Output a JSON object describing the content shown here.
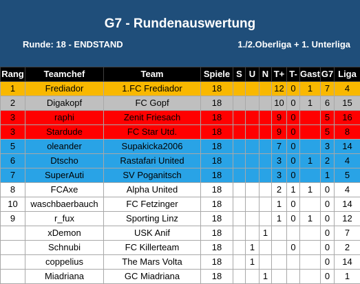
{
  "header": {
    "title": "G7 - Rundenauswertung",
    "round": "Runde: 18 - ENDSTAND",
    "league": "1./2.Oberliga + 1. Unterliga"
  },
  "colors": {
    "header_bg": "#1f4e7a",
    "gold": "#f9b800",
    "silver": "#bfbfbf",
    "red": "#ff0000",
    "blue": "#29a3e6"
  },
  "table": {
    "headers": [
      "Rang",
      "Teamchef",
      "Team",
      "Spiele",
      "S",
      "U",
      "N",
      "T+",
      "T-",
      "Gast",
      "G7",
      "Liga"
    ],
    "rows": [
      {
        "style": "gold",
        "cells": [
          "1",
          "Frediador",
          "1.FC Frediador",
          "18",
          "",
          "",
          "",
          "12",
          "0",
          "1",
          "7",
          "4"
        ]
      },
      {
        "style": "silver",
        "cells": [
          "2",
          "Digakopf",
          "FC Gopf",
          "18",
          "",
          "",
          "",
          "10",
          "0",
          "1",
          "6",
          "15"
        ]
      },
      {
        "style": "red",
        "cells": [
          "3",
          "raphi",
          "Zenit Friesach",
          "18",
          "",
          "",
          "",
          "9",
          "0",
          "",
          "5",
          "16"
        ]
      },
      {
        "style": "red",
        "cells": [
          "3",
          "Stardude",
          "FC Star Utd.",
          "18",
          "",
          "",
          "",
          "9",
          "0",
          "",
          "5",
          "8"
        ]
      },
      {
        "style": "blue",
        "cells": [
          "5",
          "oleander",
          "Supakicka2006",
          "18",
          "",
          "",
          "",
          "7",
          "0",
          "",
          "3",
          "14"
        ]
      },
      {
        "style": "blue",
        "cells": [
          "6",
          "Dtscho",
          "Rastafari United",
          "18",
          "",
          "",
          "",
          "3",
          "0",
          "1",
          "2",
          "4"
        ]
      },
      {
        "style": "blue",
        "cells": [
          "7",
          "SuperAuti",
          "SV Poganitsch",
          "18",
          "",
          "",
          "",
          "3",
          "0",
          "",
          "1",
          "5"
        ]
      },
      {
        "style": "white",
        "cells": [
          "8",
          "FCAxe",
          "Alpha United",
          "18",
          "",
          "",
          "",
          "2",
          "1",
          "1",
          "0",
          "4"
        ]
      },
      {
        "style": "white",
        "cells": [
          "10",
          "waschbaerbauch",
          "FC Fetzinger",
          "18",
          "",
          "",
          "",
          "1",
          "0",
          "",
          "0",
          "14"
        ]
      },
      {
        "style": "white",
        "cells": [
          "9",
          "r_fux",
          "Sporting Linz",
          "18",
          "",
          "",
          "",
          "1",
          "0",
          "1",
          "0",
          "12"
        ]
      },
      {
        "style": "white",
        "cells": [
          "",
          "xDemon",
          "USK Anif",
          "18",
          "",
          "",
          "1",
          "",
          "",
          "",
          "0",
          "7"
        ]
      },
      {
        "style": "white",
        "cells": [
          "",
          "Schnubi",
          "FC Killerteam",
          "18",
          "",
          "1",
          "",
          "",
          "0",
          "",
          "0",
          "2"
        ]
      },
      {
        "style": "white",
        "cells": [
          "",
          "coppelius",
          "The Mars Volta",
          "18",
          "",
          "1",
          "",
          "",
          "",
          "",
          "0",
          "14"
        ]
      },
      {
        "style": "white",
        "cells": [
          "",
          "Miadriana",
          "GC Miadriana",
          "18",
          "",
          "",
          "1",
          "",
          "",
          "",
          "0",
          "1"
        ]
      }
    ]
  }
}
